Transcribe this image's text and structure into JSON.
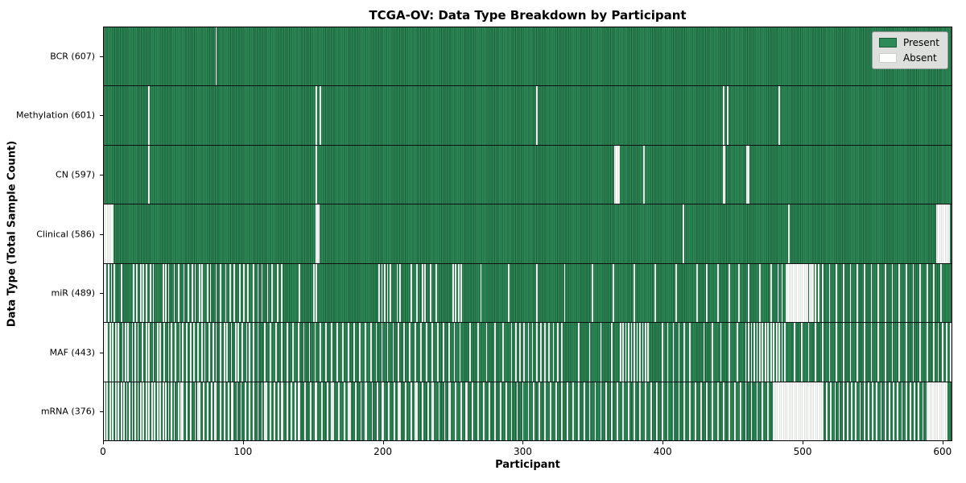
{
  "chart_data": {
    "type": "heatmap",
    "title": "TCGA-OV: Data Type Breakdown by Participant",
    "xlabel": "Participant",
    "ylabel": "Data Type (Total Sample Count)",
    "legend_labels": [
      "Present",
      "Absent"
    ],
    "legend_position": "upper right",
    "grid": false,
    "total": 608,
    "xlim": [
      0,
      607
    ],
    "xticks": [
      0,
      100,
      200,
      300,
      400,
      500,
      600
    ],
    "colors": {
      "present": "#2E8B57",
      "present_edge": "#1c5b38",
      "absent": "#ffffff",
      "absent_edge": "#c4c7c4",
      "legend_bg": "#dcdfdc",
      "background": "#ffffff"
    },
    "rows": [
      {
        "label": "BCR",
        "count": 607,
        "absent": [
          80
        ]
      },
      {
        "label": "Methylation",
        "count": 601,
        "absent": [
          32,
          152,
          155,
          310,
          444,
          447,
          484
        ]
      },
      {
        "label": "CN",
        "count": 597,
        "absent": [
          32,
          152,
          366,
          367,
          368,
          369,
          387,
          444,
          445,
          461,
          462
        ]
      },
      {
        "label": "Clinical",
        "count": 586,
        "absent": [
          0,
          1,
          2,
          3,
          4,
          5,
          6,
          152,
          153,
          154,
          415,
          491,
          597,
          598,
          599,
          600,
          601,
          602,
          603,
          604,
          605,
          606
        ]
      },
      {
        "label": "miR",
        "count": 489,
        "absent": [
          0,
          1,
          3,
          5,
          7,
          12,
          21,
          23,
          26,
          28,
          30,
          33,
          35,
          42,
          44,
          46,
          50,
          53,
          57,
          60,
          63,
          65,
          68,
          70,
          74,
          76,
          80,
          83,
          87,
          90,
          93,
          97,
          100,
          103,
          107,
          110,
          113,
          117,
          120,
          124,
          127,
          140,
          150,
          152,
          197,
          199,
          201,
          203,
          205,
          210,
          212,
          220,
          224,
          228,
          230,
          234,
          238,
          250,
          252,
          254,
          256,
          270,
          290,
          310,
          330,
          350,
          365,
          380,
          395,
          410,
          425,
          432,
          440,
          448,
          455,
          462,
          470,
          478,
          483,
          486,
          489,
          490,
          491,
          492,
          493,
          494,
          495,
          496,
          497,
          498,
          499,
          500,
          501,
          502,
          503,
          504,
          506,
          507,
          508,
          510,
          512,
          515,
          520,
          525,
          530,
          535,
          540,
          545,
          550,
          555,
          560,
          565,
          570,
          575,
          580,
          585,
          590,
          595,
          600
        ]
      },
      {
        "label": "MAF",
        "count": 443,
        "absent": [
          0,
          1,
          2,
          4,
          6,
          8,
          10,
          13,
          15,
          17,
          20,
          22,
          24,
          27,
          30,
          32,
          35,
          38,
          40,
          43,
          46,
          48,
          51,
          54,
          56,
          59,
          62,
          64,
          67,
          70,
          72,
          75,
          78,
          80,
          83,
          86,
          88,
          91,
          94,
          96,
          99,
          102,
          104,
          107,
          110,
          115,
          119,
          123,
          127,
          131,
          135,
          139,
          143,
          147,
          151,
          155,
          159,
          163,
          167,
          171,
          175,
          179,
          183,
          187,
          191,
          195,
          199,
          203,
          207,
          211,
          215,
          219,
          223,
          227,
          231,
          235,
          239,
          243,
          247,
          251,
          255,
          262,
          268,
          274,
          280,
          286,
          292,
          295,
          298,
          301,
          304,
          307,
          310,
          313,
          316,
          319,
          322,
          325,
          328,
          340,
          348,
          356,
          364,
          370,
          372,
          374,
          376,
          378,
          380,
          382,
          384,
          386,
          388,
          390,
          400,
          404,
          408,
          412,
          416,
          420,
          430,
          436,
          442,
          448,
          454,
          460,
          462,
          464,
          466,
          468,
          470,
          472,
          474,
          476,
          478,
          480,
          482,
          484,
          486,
          488,
          495,
          500,
          505,
          510,
          515,
          520,
          525,
          530,
          535,
          540,
          545,
          550,
          555,
          560,
          565,
          570,
          575,
          580,
          585,
          590,
          595,
          598,
          601,
          604,
          607
        ]
      },
      {
        "label": "mRNA",
        "count": 376,
        "absent": [
          0,
          2,
          4,
          6,
          8,
          10,
          12,
          14,
          16,
          18,
          20,
          22,
          24,
          26,
          28,
          30,
          32,
          34,
          36,
          38,
          40,
          42,
          44,
          46,
          48,
          50,
          53,
          55,
          56,
          59,
          62,
          65,
          67,
          68,
          71,
          74,
          77,
          79,
          80,
          83,
          86,
          89,
          91,
          92,
          95,
          98,
          101,
          104,
          107,
          110,
          113,
          115,
          116,
          119,
          122,
          125,
          127,
          128,
          131,
          134,
          137,
          139,
          140,
          144,
          148,
          151,
          152,
          156,
          160,
          163,
          164,
          168,
          172,
          175,
          176,
          180,
          184,
          187,
          188,
          192,
          196,
          199,
          200,
          204,
          208,
          211,
          212,
          216,
          220,
          223,
          224,
          228,
          232,
          235,
          236,
          240,
          244,
          247,
          248,
          252,
          256,
          259,
          260,
          264,
          268,
          272,
          276,
          280,
          284,
          288,
          292,
          296,
          300,
          304,
          308,
          312,
          316,
          320,
          324,
          328,
          332,
          336,
          340,
          344,
          348,
          352,
          356,
          360,
          364,
          368,
          372,
          376,
          380,
          384,
          388,
          392,
          396,
          400,
          404,
          408,
          412,
          416,
          420,
          424,
          428,
          432,
          436,
          440,
          444,
          448,
          452,
          456,
          460,
          464,
          468,
          472,
          476,
          480,
          481,
          482,
          483,
          484,
          485,
          486,
          487,
          488,
          489,
          490,
          491,
          492,
          493,
          494,
          495,
          496,
          497,
          498,
          499,
          500,
          501,
          502,
          503,
          504,
          505,
          506,
          507,
          508,
          509,
          510,
          511,
          512,
          513,
          514,
          515,
          518,
          521,
          524,
          527,
          530,
          533,
          536,
          539,
          542,
          545,
          548,
          551,
          554,
          557,
          560,
          563,
          566,
          569,
          572,
          575,
          578,
          581,
          584,
          587,
          590,
          591,
          592,
          593,
          594,
          595,
          596,
          597,
          598,
          599,
          600,
          601,
          602,
          603,
          604
        ]
      }
    ]
  }
}
